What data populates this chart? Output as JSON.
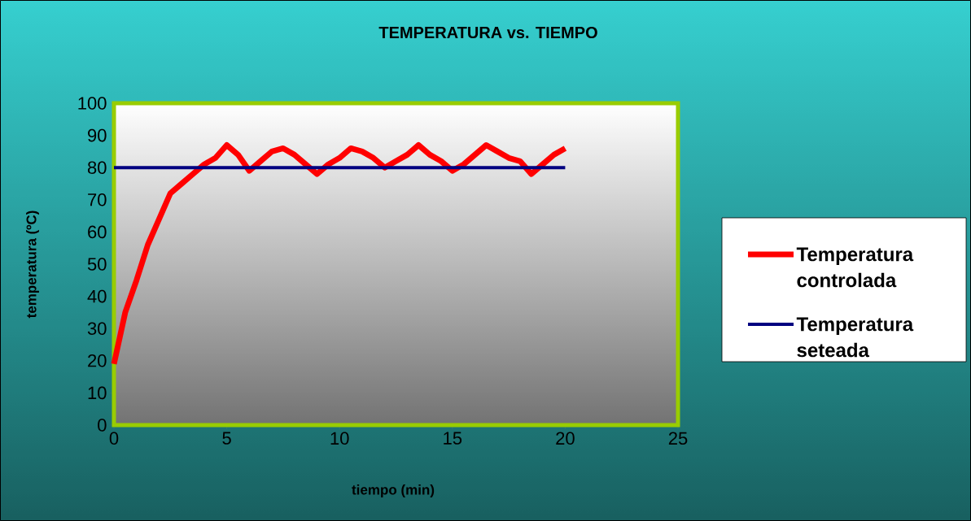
{
  "chart_data": {
    "type": "line",
    "title": "TEMPERATURA vs. TIEMPO",
    "xlabel": "tiempo (min)",
    "ylabel": "temperatura (ºC)",
    "xlim": [
      0,
      25
    ],
    "xticks": [
      0,
      5,
      10,
      15,
      20,
      25
    ],
    "ylim": [
      0,
      100
    ],
    "yticks": [
      0,
      10,
      20,
      30,
      40,
      50,
      60,
      70,
      80,
      90,
      100
    ],
    "grid": false,
    "legend": "right",
    "marker": "none",
    "line_style": "solid",
    "series": [
      {
        "name": "Temperatura controlada",
        "color": "#ff0000",
        "x": [
          0,
          0.5,
          1,
          1.5,
          2,
          2.5,
          3,
          3.5,
          4,
          4.5,
          5,
          5.5,
          6,
          6.5,
          7,
          7.5,
          8,
          8.5,
          9,
          9.5,
          10,
          10.5,
          11,
          11.5,
          12,
          12.5,
          13,
          13.5,
          14,
          14.5,
          15,
          15.5,
          16,
          16.5,
          17,
          17.5,
          18,
          18.5,
          19,
          19.5,
          20
        ],
        "values": [
          19,
          35,
          45,
          56,
          64,
          72,
          75,
          78,
          81,
          83,
          87,
          84,
          79,
          82,
          85,
          86,
          84,
          81,
          78,
          81,
          83,
          86,
          85,
          83,
          80,
          82,
          84,
          87,
          84,
          82,
          79,
          81,
          84,
          87,
          85,
          83,
          82,
          78,
          81,
          84,
          86
        ]
      },
      {
        "name": "Temperatura seteada",
        "color": "#000080",
        "x": [
          0,
          20
        ],
        "values": [
          80,
          80
        ]
      }
    ]
  }
}
